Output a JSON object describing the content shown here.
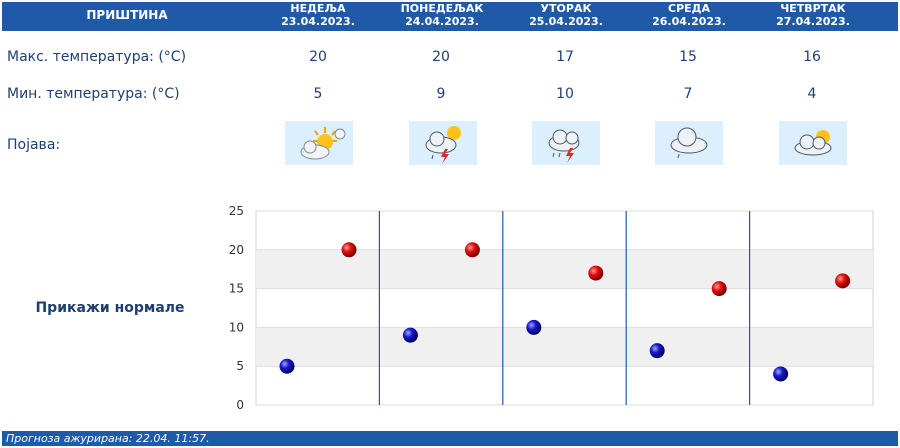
{
  "header": {
    "city": "ПРИШТИНА",
    "days": [
      {
        "name": "НЕДЕЉА",
        "date": "23.04.2023."
      },
      {
        "name": "ПОНЕДЕЉАК",
        "date": "24.04.2023."
      },
      {
        "name": "УТОРАК",
        "date": "25.04.2023."
      },
      {
        "name": "СРЕДА",
        "date": "26.04.2023."
      },
      {
        "name": "ЧЕТВРТАК",
        "date": "27.04.2023."
      }
    ]
  },
  "rows": {
    "max_label": "Макс. температура: (°C)",
    "min_label": "Мин. температура: (°C)",
    "phenomenon_label": "Појава:"
  },
  "max_temps": [
    "20",
    "20",
    "17",
    "15",
    "16"
  ],
  "min_temps": [
    "5",
    "9",
    "10",
    "7",
    "4"
  ],
  "icons": [
    "sun-cloud-icon",
    "thunderstorm-sun-icon",
    "thunderstorm-icon",
    "cloud-rain-icon",
    "partly-cloudy-icon"
  ],
  "show_normals": "Прикажи нормале",
  "footer": "Прогноза ажурирана:  22.04. 11:57.",
  "colors": {
    "header": "#1f5aa8",
    "text": "#1f3f73",
    "max": "#cc0000",
    "min": "#1010a0"
  },
  "chart_data": {
    "type": "scatter",
    "categories": [
      "23.04.2023.",
      "24.04.2023.",
      "25.04.2023.",
      "26.04.2023.",
      "27.04.2023."
    ],
    "series": [
      {
        "values": [
          20,
          20,
          17,
          15,
          16
        ]
      },
      {
        "values": [
          5,
          9,
          10,
          7,
          4
        ]
      }
    ],
    "yticks": [
      "0",
      "5",
      "10",
      "15",
      "20",
      "25"
    ],
    "ylim": [
      0,
      25
    ],
    "grid": true
  }
}
